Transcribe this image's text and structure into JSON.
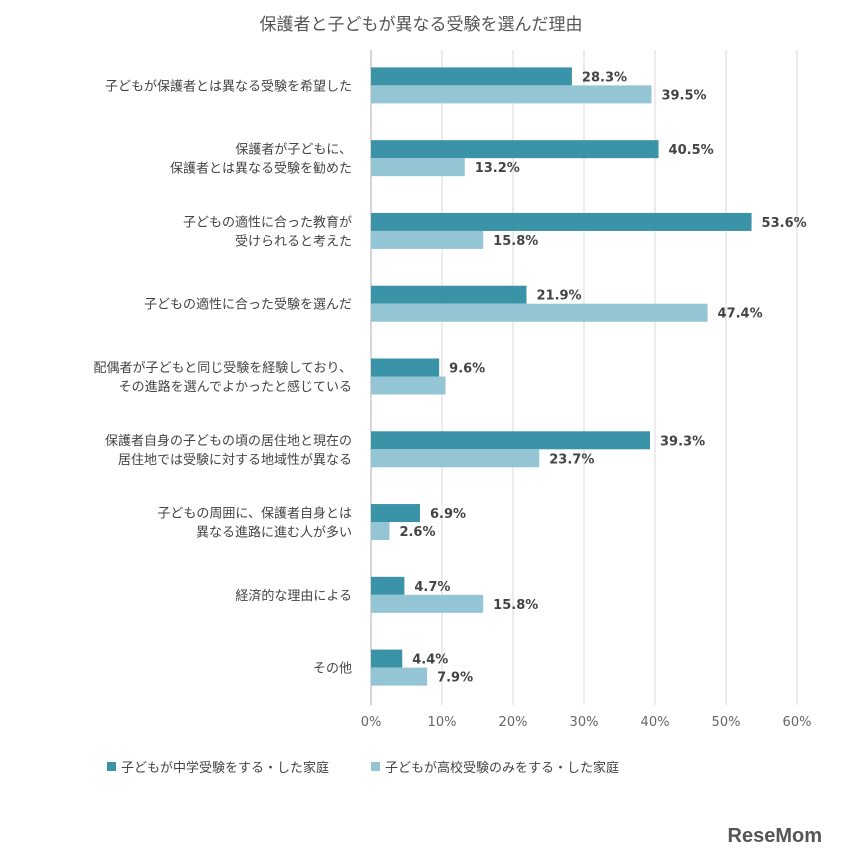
{
  "chart_data": {
    "type": "bar",
    "orientation": "horizontal",
    "title": "保護者と子どもが異なる受験を選んだ理由",
    "categories": [
      [
        "子どもが保護者とは異なる受験を希望した"
      ],
      [
        "保護者が子どもに、",
        "保護者とは異なる受験を勧めた"
      ],
      [
        "子どもの適性に合った教育が",
        "受けられると考えた"
      ],
      [
        "子どもの適性に合った受験を選んだ"
      ],
      [
        "配偶者が子どもと同じ受験を経験しており、",
        "その進路を選んでよかったと感じている"
      ],
      [
        "保護者自身の子どもの頃の居住地と現在の",
        "居住地では受験に対する地域性が異なる"
      ],
      [
        "子どもの周囲に、保護者自身とは",
        "異なる進路に進む人が多い"
      ],
      [
        "経済的な理由による"
      ],
      [
        "その他"
      ]
    ],
    "series": [
      {
        "name": "子どもが中学受験をする・した家庭",
        "color": "#3b93a7",
        "values": [
          28.3,
          40.5,
          53.6,
          21.9,
          9.6,
          39.3,
          6.9,
          4.7,
          4.4
        ],
        "labels": [
          "28.3%",
          "40.5%",
          "53.6%",
          "21.9%",
          "9.6%",
          "39.3%",
          "6.9%",
          "4.7%",
          "4.4%"
        ]
      },
      {
        "name": "子どもが高校受験のみをする・した家庭",
        "color": "#93c5d5",
        "values": [
          39.5,
          13.2,
          15.8,
          47.4,
          10.5,
          23.7,
          2.6,
          15.8,
          7.9
        ],
        "labels": [
          "39.5%",
          "13.2%",
          "15.8%",
          "47.4%",
          null,
          "23.7%",
          "2.6%",
          "15.8%",
          "7.9%"
        ]
      }
    ],
    "xlim": [
      0,
      60
    ],
    "ticks": [
      "0%",
      "10%",
      "20%",
      "30%",
      "40%",
      "50%",
      "60%"
    ],
    "grid": true,
    "legend": "bottom"
  },
  "logo": "ReseMom"
}
